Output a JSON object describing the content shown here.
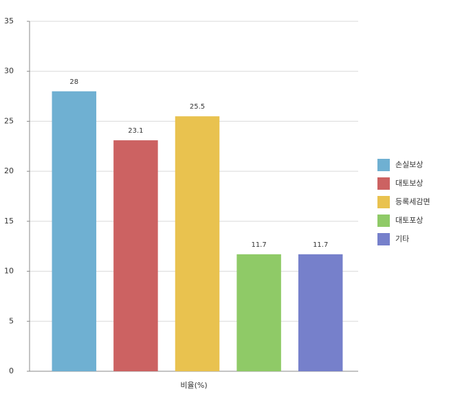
{
  "chart_data": {
    "type": "bar",
    "categories": [
      "비율(%)"
    ],
    "series": [
      {
        "name": "손실보상",
        "color": "#6fb0d2",
        "values": [
          28
        ]
      },
      {
        "name": "대토보상",
        "color": "#cc6262",
        "values": [
          23.1
        ]
      },
      {
        "name": "등록세감면",
        "color": "#e9c24f",
        "values": [
          25.5
        ]
      },
      {
        "name": "대토포상",
        "color": "#8fca67",
        "values": [
          11.7
        ]
      },
      {
        "name": "기타",
        "color": "#7680cb",
        "values": [
          11.7
        ]
      }
    ],
    "ylim": [
      0,
      35
    ],
    "yticks": [
      0,
      5,
      10,
      15,
      20,
      25,
      30,
      35
    ],
    "grid": true,
    "legend": "right"
  }
}
